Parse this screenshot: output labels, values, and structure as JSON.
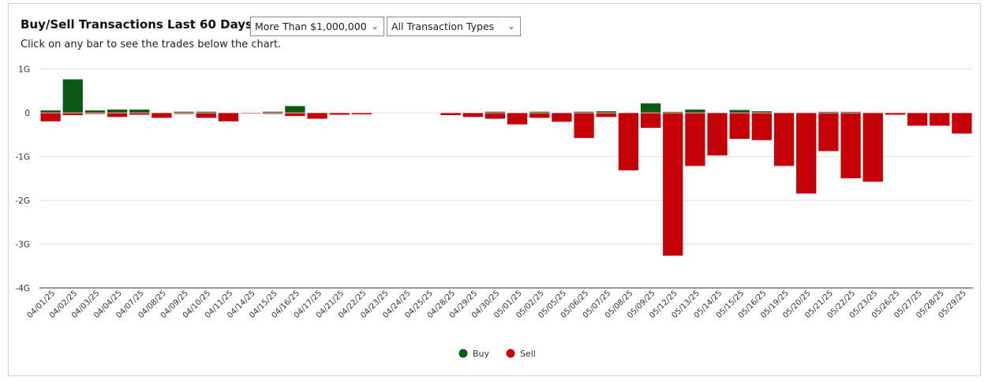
{
  "header": {
    "title": "Buy/Sell Transactions Last 60 Days",
    "subtitle": "Click on any bar to see the trades below the chart."
  },
  "filters": {
    "amount": "More Than $1,000,000",
    "type": "All Transaction Types"
  },
  "colors": {
    "buy": "#0b5a14",
    "sell": "#c40008",
    "grid": "#e2e2e2",
    "axis": "#333333"
  },
  "chart_data": {
    "type": "bar",
    "title": "Buy/Sell Transactions Last 60 Days",
    "xlabel": "",
    "ylabel": "",
    "ylim": [
      -4,
      1.05
    ],
    "y_ticks": [
      {
        "value": 1,
        "label": "1G"
      },
      {
        "value": 0,
        "label": "0"
      },
      {
        "value": -1,
        "label": "-1G"
      },
      {
        "value": -2,
        "label": "-2G"
      },
      {
        "value": -3,
        "label": "-3G"
      },
      {
        "value": -4,
        "label": "-4G"
      }
    ],
    "categories": [
      "04/01/25",
      "04/02/25",
      "04/03/25",
      "04/04/25",
      "04/07/25",
      "04/08/25",
      "04/09/25",
      "04/10/25",
      "04/11/25",
      "04/14/25",
      "04/15/25",
      "04/16/25",
      "04/17/25",
      "04/21/25",
      "04/22/25",
      "04/23/25",
      "04/24/25",
      "04/25/25",
      "04/28/25",
      "04/29/25",
      "04/30/25",
      "05/01/25",
      "05/02/25",
      "05/05/25",
      "05/06/25",
      "05/07/25",
      "05/08/25",
      "05/09/25",
      "05/12/25",
      "05/13/25",
      "05/14/25",
      "05/15/25",
      "05/16/25",
      "05/19/25",
      "05/20/25",
      "05/21/25",
      "05/22/25",
      "05/23/25",
      "05/26/25",
      "05/27/25",
      "05/28/25",
      "05/29/25"
    ],
    "series": [
      {
        "name": "Buy",
        "values": [
          0.06,
          0.77,
          0.06,
          0.08,
          0.08,
          0.0,
          0.03,
          0.03,
          0.0,
          0.0,
          0.03,
          0.16,
          0.0,
          0.0,
          0.0,
          0.0,
          0.0,
          0.0,
          0.0,
          0.0,
          0.03,
          0.0,
          0.03,
          0.0,
          0.03,
          0.04,
          0.0,
          0.22,
          0.02,
          0.08,
          0.0,
          0.07,
          0.04,
          0.0,
          0.0,
          0.02,
          0.02,
          0.0,
          0.0,
          0.0,
          0.0,
          0.0
        ]
      },
      {
        "name": "Sell",
        "values": [
          -0.2,
          -0.06,
          -0.03,
          -0.1,
          -0.05,
          -0.12,
          -0.03,
          -0.12,
          -0.2,
          -0.02,
          -0.03,
          -0.08,
          -0.14,
          -0.05,
          -0.04,
          0.0,
          0.0,
          0.0,
          -0.06,
          -0.1,
          -0.14,
          -0.27,
          -0.12,
          -0.21,
          -0.58,
          -0.1,
          -1.32,
          -0.35,
          -3.27,
          -1.22,
          -0.98,
          -0.6,
          -0.63,
          -1.22,
          -1.85,
          -0.88,
          -1.5,
          -1.58,
          -0.05,
          -0.3,
          -0.3,
          -0.48
        ]
      }
    ],
    "legend": [
      {
        "name": "Buy"
      },
      {
        "name": "Sell"
      }
    ],
    "legend_position": "bottom-center"
  }
}
